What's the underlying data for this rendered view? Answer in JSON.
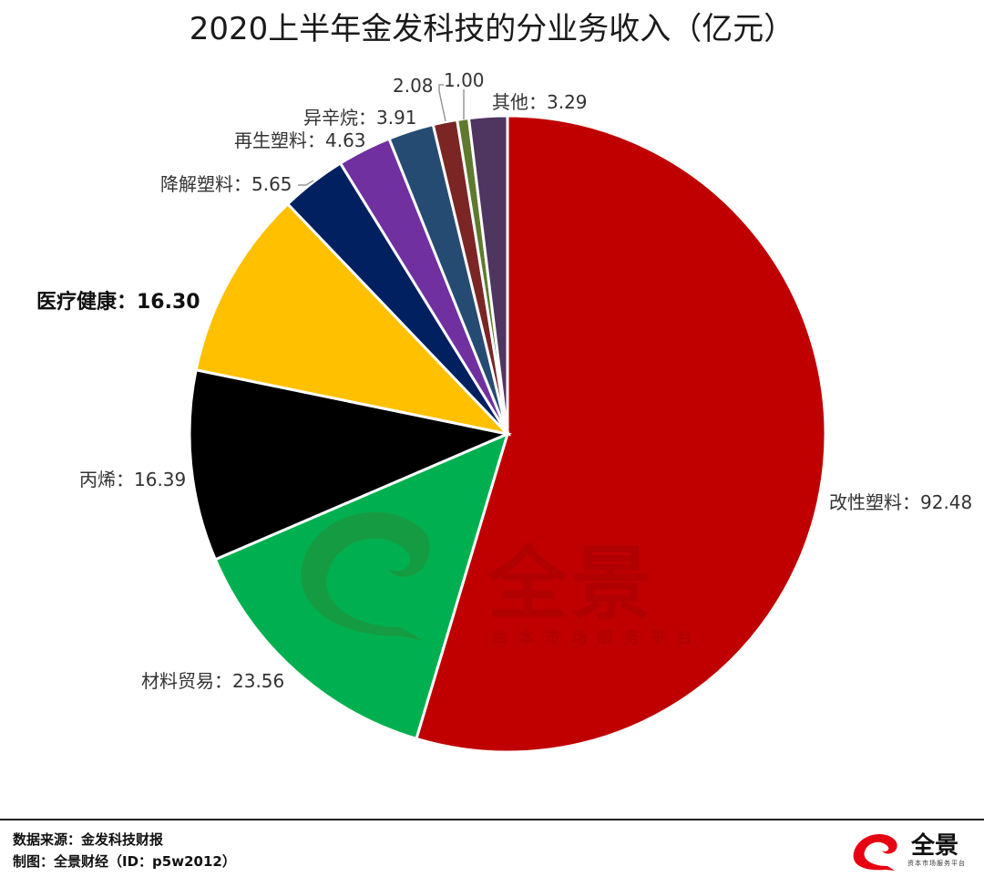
{
  "title": "2020上半年金发科技的分业务收入（亿元）",
  "chart_data": {
    "type": "pie",
    "title": "2020上半年金发科技的分业务收入（亿元）",
    "unit": "亿元",
    "start_angle": "12 o'clock, clockwise",
    "slices": [
      {
        "name": "改性塑料",
        "value": 92.48,
        "color": "#C00000",
        "label": "改性塑料：92.48"
      },
      {
        "name": "材料贸易",
        "value": 23.56,
        "color": "#00B050",
        "label": "材料贸易：23.56"
      },
      {
        "name": "丙烯",
        "value": 16.39,
        "color": "#000000",
        "label": "丙烯：16.39"
      },
      {
        "name": "医疗健康",
        "value": 16.3,
        "color": "#FFC000",
        "label": "医疗健康：16.30",
        "bold": true
      },
      {
        "name": "降解塑料",
        "value": 5.65,
        "color": "#002060",
        "label": "降解塑料：5.65"
      },
      {
        "name": "再生塑料",
        "value": 4.63,
        "color": "#7030A0",
        "label": "再生塑料：4.63"
      },
      {
        "name": "异辛烷",
        "value": 3.91,
        "color": "#264B73",
        "label": "异辛烷：3.91"
      },
      {
        "name": "",
        "value": 2.08,
        "color": "#7B2525",
        "label": "2.08"
      },
      {
        "name": "",
        "value": 1.0,
        "color": "#5E7A2E",
        "label": "1.00"
      },
      {
        "name": "其他",
        "value": 3.29,
        "color": "#4E3661",
        "label": "其他：3.29"
      }
    ],
    "legend": "none (data labels)"
  },
  "watermark": {
    "text": "全景",
    "subtext": "资本市场服务平台"
  },
  "footer": {
    "source": "数据来源：金发科技财报",
    "credit": "制图：全景财经（ID：p5w2012）"
  },
  "brand": {
    "name": "全景",
    "tagline": "资本市场服务平台",
    "color": "#E60012"
  }
}
